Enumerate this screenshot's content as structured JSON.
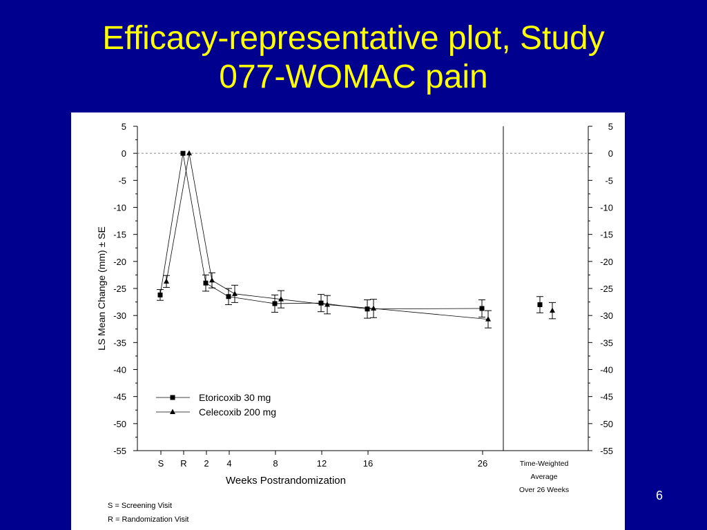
{
  "slide": {
    "title_line1": "Efficacy-representative plot, Study",
    "title_line2": "077-WOMAC pain",
    "page_number": "6"
  },
  "colors": {
    "background": "#00008f",
    "title": "#ffff00",
    "panel": "#ffffff"
  },
  "chart_data": {
    "type": "line",
    "ylabel": "LS Mean Change (mm) ± SE",
    "xlabel": "Weeks Postrandomization",
    "ylim": [
      -55,
      5
    ],
    "yticks": [
      5,
      0,
      -5,
      -10,
      -15,
      -20,
      -25,
      -30,
      -35,
      -40,
      -45,
      -50,
      -55
    ],
    "reference_line": 0,
    "categories": [
      "S",
      "R",
      "2",
      "4",
      "8",
      "12",
      "16",
      "26"
    ],
    "series": [
      {
        "name": "Etoricoxib 30 mg",
        "marker": "square",
        "values": [
          -26.2,
          0,
          -24.0,
          -26.5,
          -27.8,
          -27.7,
          -28.8,
          -28.7
        ],
        "errors": [
          1.0,
          0,
          1.5,
          1.5,
          1.6,
          1.6,
          1.7,
          1.6
        ],
        "time_weighted_average": {
          "value": -28.0,
          "error": 1.5
        }
      },
      {
        "name": "Celecoxib 200 mg",
        "marker": "triangle",
        "values": [
          -23.7,
          0,
          -23.5,
          -26.0,
          -27.0,
          -28.0,
          -28.7,
          -30.7
        ],
        "errors": [
          1.1,
          0,
          1.4,
          1.6,
          1.6,
          1.7,
          1.7,
          1.6
        ],
        "time_weighted_average": {
          "value": -29.1,
          "error": 1.5
        }
      }
    ],
    "summary_label": [
      "Time-Weighted",
      "Average",
      "Over 26 Weeks"
    ],
    "footnotes": [
      "S = Screening Visit",
      "R = Randomization Visit"
    ],
    "legend_position": "bottom-left",
    "grid": false
  }
}
